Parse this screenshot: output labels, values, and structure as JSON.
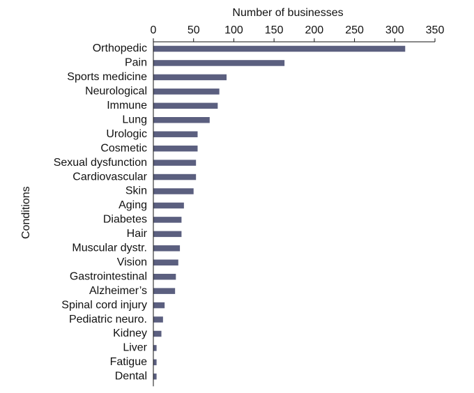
{
  "colors": {
    "bar": "#5b5f7f",
    "axis": "#111111",
    "background": "#ffffff"
  },
  "chart_data": {
    "type": "bar",
    "orientation": "horizontal",
    "xlabel": "Number of businesses",
    "ylabel": "Conditions",
    "x_axis_position": "top",
    "xlim": [
      0,
      350
    ],
    "xticks": [
      0,
      50,
      100,
      150,
      200,
      250,
      300,
      350
    ],
    "grid": false,
    "categories": [
      "Orthopedic",
      "Pain",
      "Sports medicine",
      "Neurological",
      "Immune",
      "Lung",
      "Urologic",
      "Cosmetic",
      "Sexual dysfunction",
      "Cardiovascular",
      "Skin",
      "Aging",
      "Diabetes",
      "Hair",
      "Muscular dystr.",
      "Vision",
      "Gastrointestinal",
      "Alzheimer’s",
      "Spinal cord injury",
      "Pediatric neuro.",
      "Kidney",
      "Liver",
      "Fatigue",
      "Dental"
    ],
    "values": [
      313,
      163,
      91,
      82,
      80,
      70,
      55,
      55,
      53,
      53,
      50,
      38,
      35,
      35,
      33,
      31,
      28,
      27,
      14,
      12,
      10,
      4,
      4,
      4
    ]
  }
}
